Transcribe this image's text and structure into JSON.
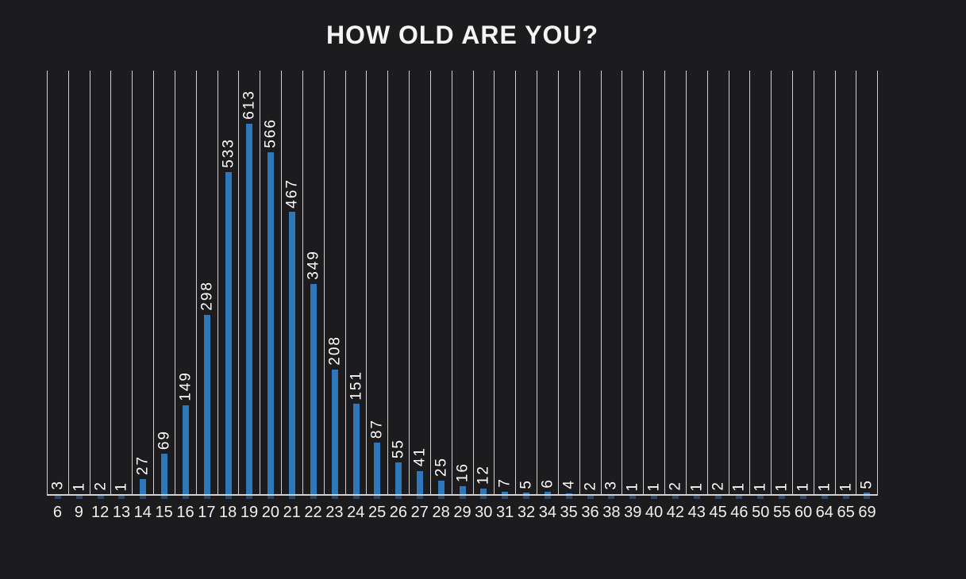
{
  "chart_data": {
    "type": "bar",
    "title": "HOW OLD ARE YOU?",
    "categories": [
      "6",
      "9",
      "12",
      "13",
      "14",
      "15",
      "16",
      "17",
      "18",
      "19",
      "20",
      "21",
      "22",
      "23",
      "24",
      "25",
      "26",
      "27",
      "28",
      "29",
      "30",
      "31",
      "32",
      "34",
      "35",
      "36",
      "38",
      "39",
      "40",
      "42",
      "43",
      "45",
      "46",
      "50",
      "55",
      "60",
      "64",
      "65",
      "69"
    ],
    "values": [
      3,
      1,
      2,
      1,
      27,
      69,
      149,
      298,
      533,
      613,
      566,
      467,
      349,
      208,
      151,
      87,
      55,
      41,
      25,
      16,
      12,
      7,
      5,
      6,
      4,
      2,
      3,
      1,
      1,
      2,
      1,
      2,
      1,
      1,
      1,
      1,
      1,
      1,
      5
    ],
    "xlabel": "",
    "ylabel": "",
    "ylim": [
      0,
      700
    ],
    "grid": "vertical-lines-between-categories",
    "legend_position": "none",
    "data_labels": "values-rotated-90-above-bars",
    "colors": {
      "background": "#1c1c1e",
      "bar": "#2f76ba",
      "gridline": "#cfcfcf",
      "axis_line": "#d2d2d2",
      "label_text": "#ffffff",
      "title_text": "#f5f5f5"
    }
  }
}
